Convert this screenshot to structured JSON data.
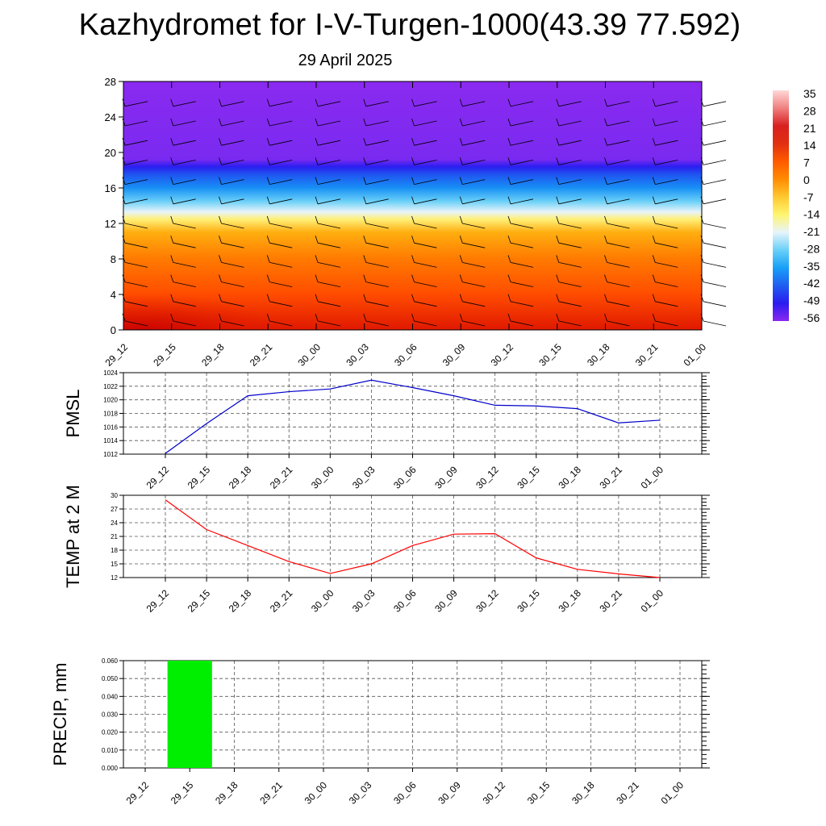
{
  "title": "Kazhydromet for I-V-Turgen-1000(43.39 77.592)",
  "subtitle": "29 April 2025",
  "time_labels": [
    "29_12",
    "29_15",
    "29_18",
    "29_21",
    "30_00",
    "30_03",
    "30_06",
    "30_09",
    "30_12",
    "30_15",
    "30_18",
    "30_21",
    "01_00"
  ],
  "colorbar": {
    "labels": [
      "35",
      "28",
      "21",
      "14",
      "7",
      "0",
      "-7",
      "-14",
      "-21",
      "-28",
      "-35",
      "-42",
      "-49",
      "-56"
    ],
    "colors": [
      "#ffd8d8",
      "#f08080",
      "#d82020",
      "#e03010",
      "#ff5a00",
      "#ff8c00",
      "#ffc830",
      "#fff56e",
      "#e8f4fa",
      "#6ad0f8",
      "#18a0f8",
      "#1f5ef0",
      "#2a1cf0",
      "#8a28f0"
    ]
  },
  "chart_data": [
    {
      "type": "heatmap",
      "ylim": [
        0,
        28
      ],
      "yticks": [
        0,
        4,
        8,
        12,
        16,
        20,
        24,
        28
      ],
      "x": [
        "29_12",
        "29_15",
        "29_18",
        "29_21",
        "30_00",
        "30_03",
        "30_06",
        "30_09",
        "30_12",
        "30_15",
        "30_18",
        "30_21",
        "01_00"
      ],
      "levels": [
        {
          "y": 0,
          "color": "#e01800"
        },
        {
          "y": 4,
          "color": "#ff4c00"
        },
        {
          "y": 8,
          "color": "#ff7a00"
        },
        {
          "y": 11,
          "color": "#ffae10"
        },
        {
          "y": 12.5,
          "color": "#fff07a"
        },
        {
          "y": 13.3,
          "color": "#e8f4fa"
        },
        {
          "y": 14.5,
          "color": "#6ad0f8"
        },
        {
          "y": 16,
          "color": "#1890f5"
        },
        {
          "y": 17.5,
          "color": "#1f55f0"
        },
        {
          "y": 18.4,
          "color": "#2a1ef0"
        },
        {
          "y": 19.2,
          "color": "#7a2af0"
        },
        {
          "y": 28,
          "color": "#8a2af0"
        }
      ],
      "colorbar_range": [
        -56,
        35
      ]
    },
    {
      "type": "line",
      "ylabel": "PMSL",
      "ylim": [
        1012,
        1024
      ],
      "yticks": [
        1012,
        1014,
        1016,
        1018,
        1020,
        1022,
        1024
      ],
      "x": [
        "29_12",
        "29_15",
        "29_18",
        "29_21",
        "30_00",
        "30_03",
        "30_06",
        "30_09",
        "30_12",
        "30_15",
        "30_18",
        "30_21",
        "01_00"
      ],
      "values": [
        1012.1,
        1016.5,
        1020.6,
        1021.2,
        1021.6,
        1022.9,
        1021.8,
        1020.6,
        1019.2,
        1019.1,
        1018.7,
        1016.6,
        1017.0
      ],
      "color": "#0000cc",
      "grid": true
    },
    {
      "type": "line",
      "ylabel": "TEMP at 2 M",
      "ylim": [
        12,
        30
      ],
      "yticks": [
        12,
        15,
        18,
        21,
        24,
        27,
        30
      ],
      "x": [
        "29_12",
        "29_15",
        "29_18",
        "29_21",
        "30_00",
        "30_03",
        "30_06",
        "30_09",
        "30_12",
        "30_15",
        "30_18",
        "30_21",
        "01_00"
      ],
      "values": [
        29.0,
        22.5,
        19.0,
        15.5,
        12.9,
        15.0,
        19.0,
        21.5,
        21.6,
        16.3,
        13.8,
        12.8,
        12.0
      ],
      "color": "#ff0000",
      "grid": true
    },
    {
      "type": "bar",
      "ylabel": "PRECIP, mm",
      "ylim": [
        0,
        0.06
      ],
      "yticks": [
        "0.000",
        "0.010",
        "0.020",
        "0.030",
        "0.040",
        "0.050",
        "0.060"
      ],
      "x": [
        "29_12",
        "29_15",
        "29_18",
        "29_21",
        "30_00",
        "30_03",
        "30_06",
        "30_09",
        "30_12",
        "30_15",
        "30_18",
        "30_21",
        "01_00"
      ],
      "values": [
        0,
        0.06,
        0,
        0,
        0,
        0,
        0,
        0,
        0,
        0,
        0,
        0,
        0
      ],
      "color": "#00ee00",
      "grid": true
    }
  ]
}
